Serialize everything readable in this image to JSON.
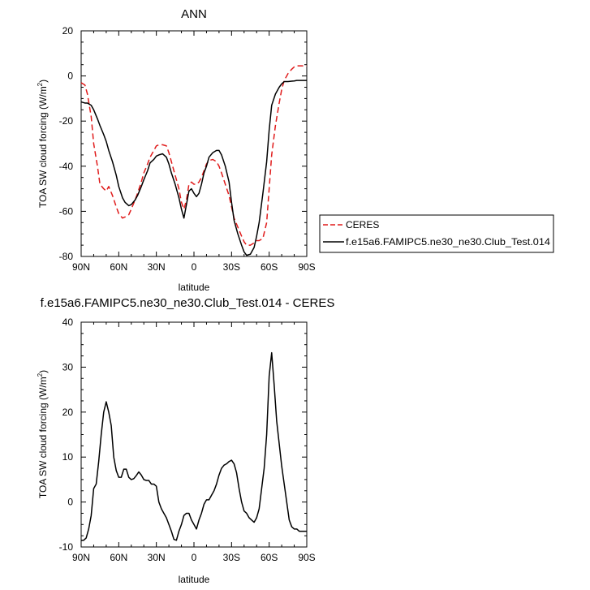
{
  "chart_data": [
    {
      "type": "line",
      "title": "ANN",
      "xlabel": "latitude",
      "ylabel": "TOA SW cloud forcing (W/m",
      "ylabel_sup": "2",
      "ylabel_close": ")",
      "xlim": [
        90,
        -90
      ],
      "ylim": [
        -80,
        20
      ],
      "x_ticks": [
        90,
        60,
        30,
        0,
        -30,
        -60,
        -90
      ],
      "x_ticklabels": [
        "90N",
        "60N",
        "30N",
        "0",
        "30S",
        "60S",
        "90S"
      ],
      "y_ticks": [
        -80,
        -60,
        -40,
        -20,
        0,
        20
      ],
      "y_ticklabels": [
        "-80",
        "-60",
        "-40",
        "-20",
        "0",
        "20"
      ],
      "grid": false,
      "legend_position": "right",
      "series": [
        {
          "name": "CERES",
          "color": "#e01b1b",
          "dash": "dashed",
          "x": [
            90,
            87,
            85,
            82,
            80,
            77,
            75,
            72,
            70,
            68,
            65,
            62,
            60,
            57,
            55,
            52,
            50,
            47,
            45,
            42,
            40,
            37,
            35,
            32,
            30,
            28,
            25,
            22,
            20,
            18,
            15,
            12,
            10,
            8,
            6,
            4,
            2,
            0,
            -2,
            -4,
            -6,
            -8,
            -10,
            -12,
            -15,
            -18,
            -20,
            -22,
            -25,
            -28,
            -30,
            -32,
            -35,
            -38,
            -40,
            -42,
            -45,
            -48,
            -50,
            -52,
            -55,
            -58,
            -60,
            -62,
            -65,
            -68,
            -70,
            -72,
            -75,
            -78,
            -80,
            -82,
            -85,
            -88,
            -90
          ],
          "values": [
            -3,
            -4,
            -8,
            -18,
            -30,
            -40,
            -48,
            -50,
            -51,
            -49,
            -53,
            -58,
            -61,
            -63,
            -62.5,
            -61.5,
            -59,
            -55,
            -52,
            -47,
            -43,
            -39,
            -36,
            -33,
            -31,
            -30.5,
            -30.5,
            -31,
            -34,
            -38,
            -44,
            -50,
            -56,
            -59,
            -55,
            -48,
            -47,
            -48,
            -48,
            -47,
            -45,
            -42,
            -39,
            -37.5,
            -37,
            -38,
            -40,
            -43,
            -48,
            -53,
            -58,
            -63,
            -67,
            -71,
            -73.5,
            -75,
            -75,
            -74,
            -73,
            -73,
            -72,
            -65,
            -50,
            -35,
            -22,
            -12,
            -6,
            -2,
            1,
            3,
            4,
            4.5,
            4.5,
            4.5,
            4.5
          ]
        },
        {
          "name": "f.e15a6.FAMIPC5.ne30_ne30.Club_Test.014",
          "color": "#000000",
          "dash": "solid",
          "x": [
            90,
            87,
            85,
            82,
            80,
            77,
            75,
            72,
            70,
            68,
            65,
            62,
            60,
            57,
            55,
            52,
            50,
            47,
            45,
            42,
            40,
            37,
            35,
            32,
            30,
            28,
            25,
            22,
            20,
            18,
            15,
            12,
            10,
            8,
            6,
            4,
            2,
            0,
            -2,
            -4,
            -6,
            -8,
            -10,
            -12,
            -15,
            -18,
            -20,
            -22,
            -25,
            -28,
            -30,
            -32,
            -35,
            -38,
            -40,
            -42,
            -45,
            -48,
            -50,
            -52,
            -55,
            -58,
            -60,
            -62,
            -65,
            -68,
            -70,
            -72,
            -75,
            -78,
            -80,
            -82,
            -85,
            -88,
            -90
          ],
          "values": [
            -11.5,
            -12,
            -12,
            -13,
            -15,
            -19,
            -22,
            -26,
            -29,
            -33,
            -38,
            -44,
            -49,
            -54,
            -56,
            -57.5,
            -57,
            -55,
            -53,
            -49,
            -46,
            -42,
            -38.5,
            -37,
            -35.5,
            -35,
            -34.5,
            -36,
            -39,
            -43,
            -48,
            -54,
            -59,
            -63,
            -57,
            -51,
            -50,
            -52,
            -53.5,
            -52,
            -48,
            -43,
            -40,
            -36,
            -34,
            -33,
            -33,
            -35,
            -40,
            -47,
            -56,
            -64,
            -70,
            -75,
            -78,
            -79.5,
            -79,
            -76,
            -71,
            -65,
            -52,
            -38,
            -24,
            -13,
            -8,
            -5,
            -3.5,
            -2.5,
            -2.5,
            -2.3,
            -2.2,
            -2,
            -2,
            -2,
            -2
          ]
        }
      ]
    },
    {
      "type": "line",
      "title": "f.e15a6.FAMIPC5.ne30_ne30.Club_Test.014 - CERES",
      "xlabel": "latitude",
      "ylabel": "TOA SW cloud forcing (W/m",
      "ylabel_sup": "2",
      "ylabel_close": ")",
      "xlim": [
        90,
        -90
      ],
      "ylim": [
        -10,
        40
      ],
      "x_ticks": [
        90,
        60,
        30,
        0,
        -30,
        -60,
        -90
      ],
      "x_ticklabels": [
        "90N",
        "60N",
        "30N",
        "0",
        "30S",
        "60S",
        "90S"
      ],
      "y_ticks": [
        -10,
        0,
        10,
        20,
        30,
        40
      ],
      "y_ticklabels": [
        "-10",
        "0",
        "10",
        "20",
        "30",
        "40"
      ],
      "grid": false,
      "series": [
        {
          "color": "#000000",
          "dash": "solid",
          "x": [
            90,
            88,
            86,
            84,
            82,
            80,
            78,
            76,
            74,
            72,
            70,
            68,
            66,
            64,
            62,
            60,
            58,
            56,
            54,
            52,
            50,
            48,
            46,
            44,
            42,
            40,
            38,
            36,
            34,
            32,
            30,
            28,
            26,
            24,
            22,
            20,
            18,
            16,
            14,
            12,
            10,
            8,
            6,
            4,
            2,
            0,
            -2,
            -4,
            -6,
            -8,
            -10,
            -12,
            -14,
            -16,
            -18,
            -20,
            -22,
            -24,
            -26,
            -28,
            -30,
            -32,
            -34,
            -36,
            -38,
            -40,
            -42,
            -44,
            -46,
            -48,
            -50,
            -52,
            -54,
            -56,
            -58,
            -60,
            -62,
            -64,
            -66,
            -68,
            -70,
            -72,
            -74,
            -76,
            -78,
            -80,
            -82,
            -84,
            -86,
            -88,
            -90
          ],
          "values": [
            -8.5,
            -8.5,
            -8,
            -6,
            -3,
            3,
            4,
            9,
            15,
            20,
            22.3,
            20,
            17,
            10,
            7,
            5.5,
            5.5,
            7.3,
            7.3,
            5.5,
            5,
            5.2,
            5.9,
            6.7,
            6,
            5,
            4.8,
            4.8,
            4,
            4,
            3.5,
            0,
            -1.5,
            -2.5,
            -3.5,
            -5,
            -6.5,
            -8.3,
            -8.5,
            -6.5,
            -5,
            -3,
            -2.5,
            -2.5,
            -4,
            -5,
            -6,
            -4,
            -2.5,
            -0.5,
            0.5,
            0.5,
            1.5,
            2.5,
            4,
            6,
            7.5,
            8.2,
            8.5,
            9,
            9.3,
            8.5,
            6.5,
            3,
            0,
            -2,
            -2.5,
            -3.5,
            -4,
            -4.5,
            -3.5,
            -1.5,
            3,
            7.5,
            15,
            28,
            33.2,
            26,
            18,
            13,
            8,
            4,
            0,
            -4,
            -5.5,
            -6,
            -6,
            -6.5,
            -6.5,
            -6.5,
            -6.5
          ]
        }
      ]
    }
  ]
}
